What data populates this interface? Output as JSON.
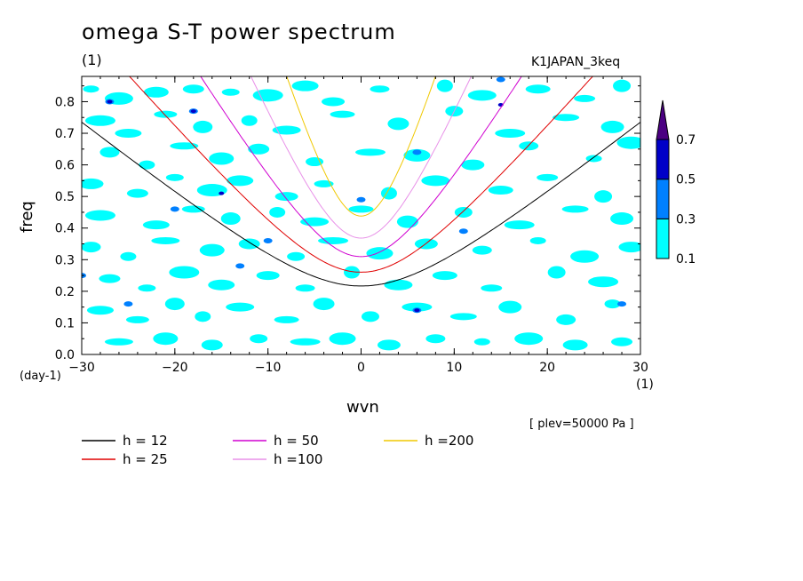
{
  "header": {
    "title": "omega S-T power spectrum",
    "title_unit": "(1)",
    "experiment": "K1JAPAN_3keq",
    "level_note": "[ plev=50000 Pa ]"
  },
  "colors": {
    "level_0_1": "#00ffff",
    "level_0_3": "#0080ff",
    "level_0_5": "#0000c8",
    "level_0_7": "#4b0082"
  },
  "chart_data": {
    "type": "heatmap",
    "title": "omega S-T power spectrum",
    "xlabel": "wvn",
    "xunit": "(1)",
    "ylabel": "freq",
    "yunit": "(day-1)",
    "xlim": [
      -30,
      30
    ],
    "ylim": [
      0,
      0.88
    ],
    "xticks": [
      -30,
      -20,
      -10,
      0,
      10,
      20,
      30
    ],
    "yticks": [
      0.0,
      0.1,
      0.2,
      0.3,
      0.4,
      0.5,
      0.6,
      0.7,
      0.8
    ],
    "colorbar": {
      "levels": [
        0.1,
        0.3,
        0.5,
        0.7
      ],
      "colors": [
        "#00ffff",
        "#0080ff",
        "#0000c8",
        "#4b0082"
      ]
    },
    "series": [
      {
        "name": "h = 12",
        "color": "#000000",
        "equivalent_depth": 12
      },
      {
        "name": "h = 25",
        "color": "#e00000",
        "equivalent_depth": 25
      },
      {
        "name": "h = 50",
        "color": "#d000d0",
        "equivalent_depth": 50
      },
      {
        "name": "h =100",
        "color": "#e890e8",
        "equivalent_depth": 100
      },
      {
        "name": "h =200",
        "color": "#f0c800",
        "equivalent_depth": 200
      }
    ],
    "patches_level_0_1": [
      [
        -29,
        0.84
      ],
      [
        -26,
        0.81
      ],
      [
        -22,
        0.83
      ],
      [
        -18,
        0.84
      ],
      [
        -14,
        0.83
      ],
      [
        -10,
        0.82
      ],
      [
        -6,
        0.85
      ],
      [
        -3,
        0.8
      ],
      [
        2,
        0.84
      ],
      [
        9,
        0.85
      ],
      [
        13,
        0.82
      ],
      [
        19,
        0.84
      ],
      [
        24,
        0.81
      ],
      [
        28,
        0.85
      ],
      [
        -28,
        0.74
      ],
      [
        -25,
        0.7
      ],
      [
        -21,
        0.76
      ],
      [
        -17,
        0.72
      ],
      [
        -12,
        0.74
      ],
      [
        -8,
        0.71
      ],
      [
        -2,
        0.76
      ],
      [
        4,
        0.73
      ],
      [
        10,
        0.77
      ],
      [
        16,
        0.7
      ],
      [
        22,
        0.75
      ],
      [
        27,
        0.72
      ],
      [
        -27,
        0.64
      ],
      [
        -23,
        0.6
      ],
      [
        -19,
        0.66
      ],
      [
        -15,
        0.62
      ],
      [
        -11,
        0.65
      ],
      [
        -5,
        0.61
      ],
      [
        1,
        0.64
      ],
      [
        6,
        0.63
      ],
      [
        12,
        0.6
      ],
      [
        18,
        0.66
      ],
      [
        25,
        0.62
      ],
      [
        29,
        0.67
      ],
      [
        -29,
        0.54
      ],
      [
        -24,
        0.51
      ],
      [
        -20,
        0.56
      ],
      [
        -16,
        0.52
      ],
      [
        -13,
        0.55
      ],
      [
        -8,
        0.5
      ],
      [
        -4,
        0.54
      ],
      [
        3,
        0.51
      ],
      [
        8,
        0.55
      ],
      [
        15,
        0.52
      ],
      [
        20,
        0.56
      ],
      [
        26,
        0.5
      ],
      [
        -28,
        0.44
      ],
      [
        -22,
        0.41
      ],
      [
        -18,
        0.46
      ],
      [
        -14,
        0.43
      ],
      [
        -9,
        0.45
      ],
      [
        -5,
        0.42
      ],
      [
        0,
        0.46
      ],
      [
        5,
        0.42
      ],
      [
        11,
        0.45
      ],
      [
        17,
        0.41
      ],
      [
        23,
        0.46
      ],
      [
        28,
        0.43
      ],
      [
        -29,
        0.34
      ],
      [
        -25,
        0.31
      ],
      [
        -21,
        0.36
      ],
      [
        -16,
        0.33
      ],
      [
        -12,
        0.35
      ],
      [
        -7,
        0.31
      ],
      [
        -3,
        0.36
      ],
      [
        2,
        0.32
      ],
      [
        7,
        0.35
      ],
      [
        13,
        0.33
      ],
      [
        19,
        0.36
      ],
      [
        24,
        0.31
      ],
      [
        29,
        0.34
      ],
      [
        -27,
        0.24
      ],
      [
        -23,
        0.21
      ],
      [
        -19,
        0.26
      ],
      [
        -15,
        0.22
      ],
      [
        -10,
        0.25
      ],
      [
        -6,
        0.21
      ],
      [
        -1,
        0.26
      ],
      [
        4,
        0.22
      ],
      [
        9,
        0.25
      ],
      [
        14,
        0.21
      ],
      [
        21,
        0.26
      ],
      [
        26,
        0.23
      ],
      [
        -28,
        0.14
      ],
      [
        -24,
        0.11
      ],
      [
        -20,
        0.16
      ],
      [
        -17,
        0.12
      ],
      [
        -13,
        0.15
      ],
      [
        -8,
        0.11
      ],
      [
        -4,
        0.16
      ],
      [
        1,
        0.12
      ],
      [
        6,
        0.15
      ],
      [
        11,
        0.12
      ],
      [
        16,
        0.15
      ],
      [
        22,
        0.11
      ],
      [
        27,
        0.16
      ],
      [
        -26,
        0.04
      ],
      [
        -21,
        0.05
      ],
      [
        -16,
        0.03
      ],
      [
        -11,
        0.05
      ],
      [
        -6,
        0.04
      ],
      [
        -2,
        0.05
      ],
      [
        3,
        0.03
      ],
      [
        8,
        0.05
      ],
      [
        13,
        0.04
      ],
      [
        18,
        0.05
      ],
      [
        23,
        0.03
      ],
      [
        28,
        0.04
      ]
    ],
    "patches_level_0_3": [
      [
        -27,
        0.8
      ],
      [
        -18,
        0.77
      ],
      [
        -30,
        0.25
      ],
      [
        -25,
        0.16
      ],
      [
        -10,
        0.36
      ],
      [
        0,
        0.49
      ],
      [
        6,
        0.64
      ],
      [
        11,
        0.39
      ],
      [
        6,
        0.14
      ],
      [
        28,
        0.16
      ],
      [
        15,
        0.87
      ],
      [
        -20,
        0.46
      ],
      [
        -13,
        0.28
      ]
    ],
    "patches_level_0_5": [
      [
        -27,
        0.8
      ],
      [
        -18,
        0.77
      ],
      [
        6,
        0.14
      ],
      [
        15,
        0.79
      ],
      [
        -15,
        0.51
      ]
    ]
  },
  "legend": {
    "items": [
      {
        "label": "h = 12",
        "color": "#000000"
      },
      {
        "label": "h = 25",
        "color": "#e00000"
      },
      {
        "label": "h = 50",
        "color": "#d000d0"
      },
      {
        "label": "h =100",
        "color": "#e890e8"
      },
      {
        "label": "h =200",
        "color": "#f0c800"
      }
    ]
  }
}
